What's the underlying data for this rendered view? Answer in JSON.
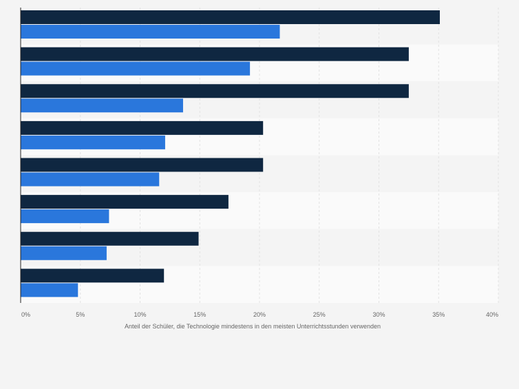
{
  "chart_data": {
    "type": "bar",
    "orientation": "horizontal",
    "title": "",
    "xlabel": "Anteil der Schüler, die Technologie mindestens in den meisten Unterrichtsstunden verwenden",
    "ylabel": "",
    "xlim": [
      0,
      40
    ],
    "tick_labels": [
      "0%",
      "5%",
      "10%",
      "15%",
      "20%",
      "25%",
      "30%",
      "35%",
      "40%"
    ],
    "categories": [
      "",
      "",
      "",
      "",
      "",
      "",
      "",
      ""
    ],
    "grid": true,
    "legend": "none",
    "series": [
      {
        "color": "#0f2741",
        "values": [
          35.1,
          32.5,
          32.5,
          20.3,
          20.3,
          17.4,
          14.9,
          12.0
        ]
      },
      {
        "color": "#2a77dc",
        "values": [
          21.7,
          19.2,
          13.6,
          12.1,
          11.6,
          7.4,
          7.2,
          4.8
        ]
      }
    ]
  }
}
